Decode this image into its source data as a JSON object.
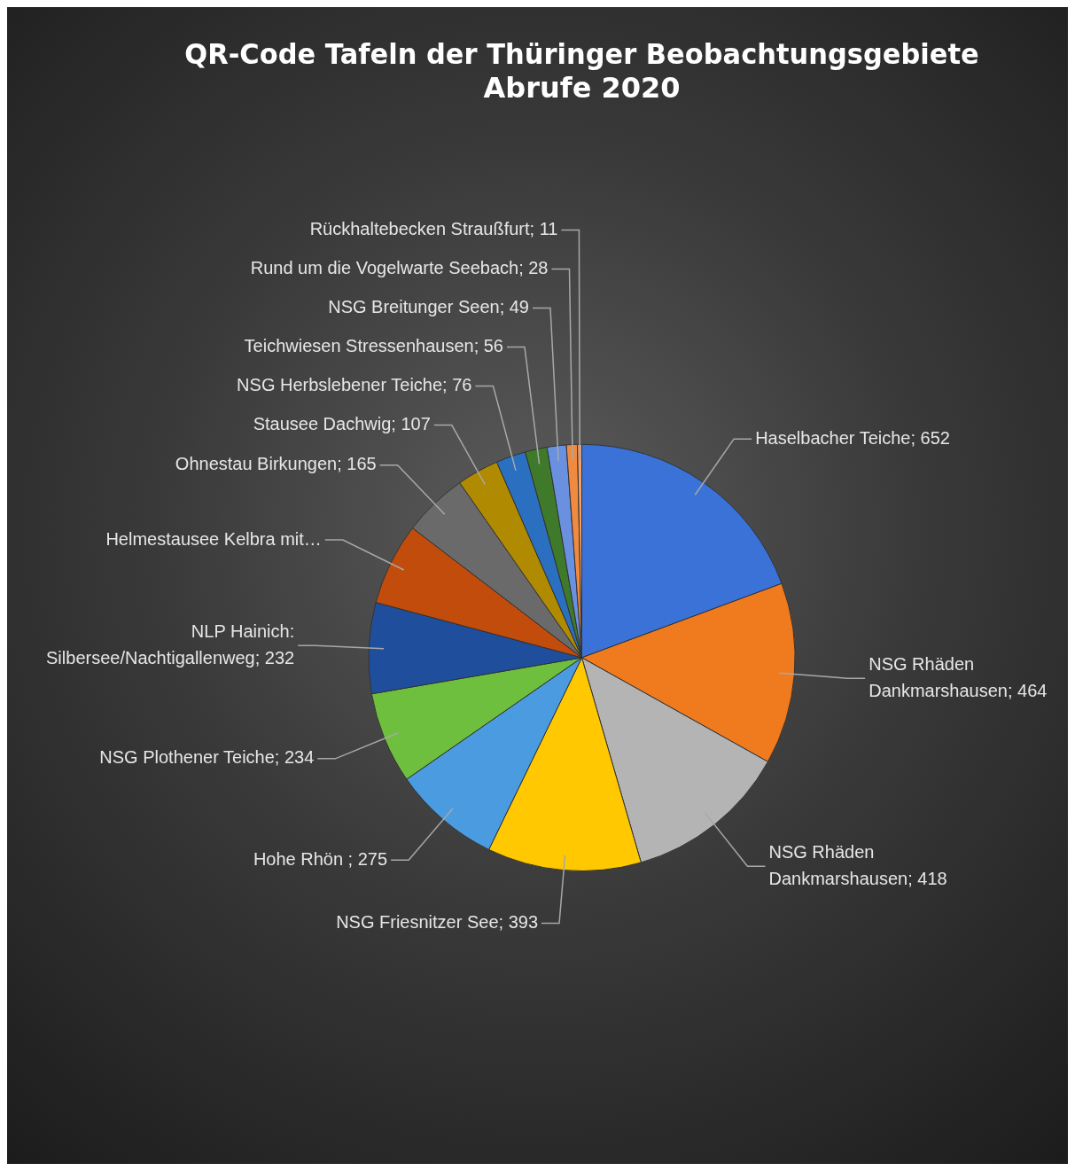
{
  "chart_data": {
    "type": "pie",
    "title": [
      "QR-Code Tafeln der Thüringer Beobachtungsgebiete",
      "Abrufe 2020"
    ],
    "categories": [
      "Haselbacher Teiche; 652",
      "NSG Rhäden Dankmarshausen; 464",
      "NSG Rhäden Dankmarshausen; 418",
      "NSG Friesnitzer See; 393",
      "Hohe Rhön ; 275",
      "NSG Plothener Teiche; 234",
      "NLP Hainich: Silbersee/Nachtigallenweg; 232",
      "Helmestausee Kelbra mit…",
      "Ohnestau Birkungen; 165",
      "Stausee Dachwig; 107",
      "NSG Herbslebener Teiche; 76",
      "Teichwiesen Stressenhausen; 56",
      "NSG Breitunger Seen; 49",
      "Rund um die Vogelwarte Seebach; 28",
      "Rückhaltebecken Straußfurt; 11"
    ],
    "values": [
      652,
      464,
      418,
      393,
      275,
      234,
      232,
      210,
      165,
      107,
      76,
      56,
      49,
      28,
      11
    ],
    "colors": [
      "#3a72d8",
      "#f07a1e",
      "#b4b4b4",
      "#ffc800",
      "#4a9be0",
      "#6fbf3f",
      "#1f4f9c",
      "#c24c0c",
      "#6a6a6a",
      "#b08a00",
      "#2a6fc0",
      "#3f7a2a",
      "#6a90e0",
      "#f08a40",
      "#f5a060"
    ],
    "legend": false
  }
}
